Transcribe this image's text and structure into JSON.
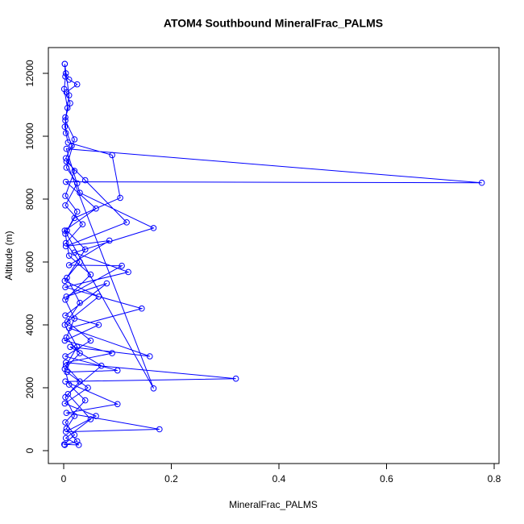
{
  "chart_data": {
    "type": "line",
    "title": "ATOM4 Southbound MineralFrac_PALMS",
    "x_label": "MineralFrac_PALMS",
    "y_label": "Altitude (m)",
    "color": "#0000ff",
    "markers": true,
    "xlim": [
      -0.0285,
      0.809
    ],
    "ylim": [
      -410,
      12820
    ],
    "xticks": [
      0.0,
      0.2,
      0.4,
      0.6,
      0.8
    ],
    "yticks": [
      0,
      2000,
      4000,
      6000,
      8000,
      10000,
      12000
    ],
    "x": [
      0.002,
      0.003,
      0.01,
      0.025,
      0.005,
      0.012,
      0.003,
      0.004,
      0.008,
      0.09,
      0.105,
      0.02,
      0.003,
      0.01,
      0.05,
      0.003,
      0.02,
      0.005,
      0.03,
      0.002,
      0.01,
      0.04,
      0.003,
      0.02,
      0.001,
      0.028,
      0.004,
      0.05,
      0.008,
      0.07,
      0.012,
      0.16,
      0.01,
      0.145,
      0.003,
      0.12,
      0.02,
      0.167,
      0.03,
      0.005,
      0.777,
      0.004,
      0.06,
      0.002,
      0.167,
      0.005,
      0.04,
      0.117,
      0.004,
      0.085,
      0.01,
      0.108,
      0.005,
      0.08,
      0.003,
      0.065,
      0.002,
      0.09,
      0.004,
      0.32,
      0.003,
      0.1,
      0.005,
      0.178,
      0.004,
      0.06,
      0.002,
      0.045,
      0.006,
      0.1,
      0.003,
      0.05,
      0.007,
      0.065,
      0.002,
      0.04,
      0.006,
      0.025,
      0.003,
      0.02,
      0.004,
      0.015,
      0.002,
      0.007,
      0.001,
      0.004,
      0.002,
      0.01,
      0.003,
      0.02,
      0.005,
      0.025,
      0.003,
      0.035,
      0.004,
      0.03,
      0.006,
      0.03,
      0.002,
      0.025,
      0.004,
      0.03,
      0.003,
      0.02,
      0.005,
      0.025,
      0.002
    ],
    "values": [
      12300,
      11900,
      11800,
      11650,
      11400,
      11050,
      10600,
      10100,
      9800,
      9400,
      8040,
      7400,
      6900,
      6200,
      5600,
      4800,
      4200,
      3600,
      3100,
      2600,
      2100,
      1600,
      900,
      500,
      200,
      180,
      400,
      1000,
      1800,
      2700,
      3300,
      3000,
      3900,
      4520,
      5200,
      5680,
      6300,
      7080,
      8200,
      9600,
      8520,
      8550,
      7700,
      7000,
      1980,
      9200,
      8600,
      7260,
      6500,
      6680,
      5900,
      5880,
      4900,
      5320,
      4300,
      4000,
      3500,
      3100,
      2800,
      2290,
      2200,
      1480,
      1200,
      680,
      600,
      1100,
      1500,
      2000,
      2500,
      2550,
      3000,
      3500,
      4100,
      4900,
      5400,
      6400,
      7000,
      7600,
      8100,
      8900,
      9300,
      9700,
      10300,
      10900,
      11500,
      12000,
      12300,
      11300,
      10500,
      9900,
      9000,
      8500,
      7800,
      7200,
      6600,
      6000,
      5500,
      4700,
      4000,
      3300,
      2700,
      2200,
      1700,
      1100,
      700,
      300,
      180
    ]
  }
}
